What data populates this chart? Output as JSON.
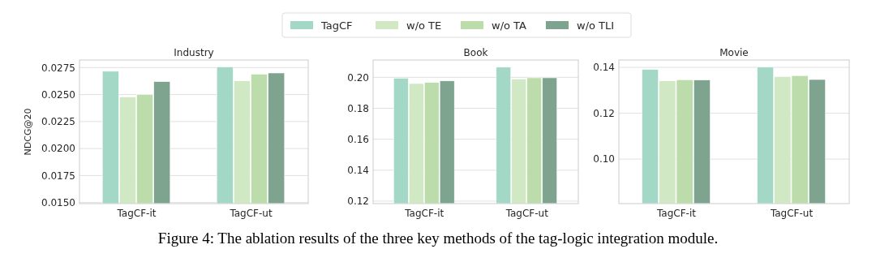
{
  "chart_data": [
    {
      "type": "bar",
      "title": "Industry",
      "ylabel": "NDCG@20",
      "categories": [
        "TagCF-it",
        "TagCF-ut"
      ],
      "series": [
        {
          "name": "TagCF",
          "color": "#a3d8c6",
          "values": [
            0.02716,
            0.02757
          ]
        },
        {
          "name": "w/o TE",
          "color": "#d0e8c3",
          "values": [
            0.02478,
            0.02627
          ]
        },
        {
          "name": "w/o TA",
          "color": "#bddcab",
          "values": [
            0.025,
            0.0269
          ]
        },
        {
          "name": "w/o TLI",
          "color": "#7ea48f",
          "values": [
            0.0262,
            0.027
          ]
        }
      ],
      "ylim": [
        0.0149,
        0.0282
      ],
      "yticks": [
        {
          "value": 0.015,
          "label": "0.0150"
        },
        0.0175,
        {
          "value": 0.02,
          "label": "0.0200"
        },
        0.0225,
        {
          "value": 0.025,
          "label": "0.0250"
        },
        0.0275
      ],
      "grid": "y",
      "legend": "top",
      "annotations": [
        "Figure 4: The ablation results of the three key methods of the tag-logic integration module."
      ]
    },
    {
      "type": "bar",
      "title": "Book",
      "categories": [
        "TagCF-it",
        "TagCF-ut"
      ],
      "series": [
        {
          "color": "#a3d8c6",
          "values": [
            0.1995,
            0.2066
          ]
        },
        {
          "color": "#d0e8c3",
          "values": [
            0.196,
            0.199
          ]
        },
        {
          "color": "#bddcab",
          "values": [
            0.1967,
            0.1997
          ]
        },
        {
          "color": "#7ea48f",
          "values": [
            0.1977,
            0.1997
          ]
        }
      ],
      "ylim": [
        0.1184,
        0.2112
      ],
      "yticks": [
        {
          "value": 0.12,
          "label": "0.12"
        },
        {
          "value": 0.14,
          "label": "0.14"
        },
        {
          "value": 0.16,
          "label": "0.16"
        },
        {
          "value": 0.18,
          "label": "0.18"
        },
        {
          "value": 0.2,
          "label": "0.20"
        }
      ],
      "grid": "y"
    },
    {
      "type": "bar",
      "title": "Movie",
      "categories": [
        "TagCF-it",
        "TagCF-ut"
      ],
      "series": [
        {
          "color": "#a3d8c6",
          "values": [
            0.1391,
            0.1401
          ]
        },
        {
          "color": "#d0e8c3",
          "values": [
            0.1341,
            0.136
          ]
        },
        {
          "color": "#bddcab",
          "values": [
            0.1346,
            0.1364
          ]
        },
        {
          "color": "#7ea48f",
          "values": [
            0.1345,
            0.1347
          ]
        }
      ],
      "ylim": [
        0.0806,
        0.1432
      ],
      "yticks": [
        {
          "value": 0.1,
          "label": "0.10"
        },
        {
          "value": 0.12,
          "label": "0.12"
        },
        {
          "value": 0.14,
          "label": "0.14"
        }
      ],
      "grid": "y"
    }
  ]
}
